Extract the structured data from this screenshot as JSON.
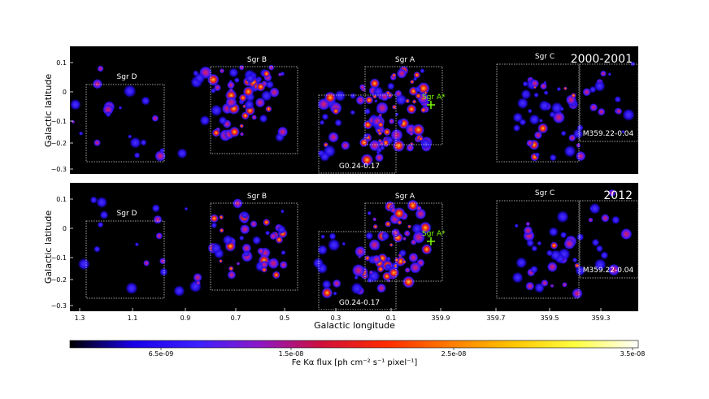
{
  "panels": [
    {
      "epoch": "2000-2001",
      "regions": [
        {
          "label": "Sgr D"
        },
        {
          "label": "Sgr B"
        },
        {
          "label": "Sgr A"
        },
        {
          "label": "G0.24-0.17"
        },
        {
          "label": "Sgr C"
        },
        {
          "label": "M359.22-0.04"
        }
      ],
      "source": "Sgr A*"
    },
    {
      "epoch": "2012",
      "regions": [
        {
          "label": "Sgr D"
        },
        {
          "label": "Sgr B"
        },
        {
          "label": "Sgr A"
        },
        {
          "label": "G0.24-0.17"
        },
        {
          "label": "Sgr C"
        },
        {
          "label": "M359.22-0.04"
        }
      ],
      "source": "Sgr A*"
    }
  ],
  "axes": {
    "ylabel": "Galactic latitude",
    "xlabel": "Galactic longitude",
    "yticks": [
      "0.1",
      "0",
      "−0.1",
      "−0.2",
      "−0.3"
    ],
    "xticks": [
      "1.3",
      "1.1",
      "0.9",
      "0.7",
      "0.5",
      "0.3",
      "0.1",
      "359.9",
      "359.7",
      "359.5",
      "359.3"
    ]
  },
  "colorbar": {
    "label": "Fe Kα flux [ph cm⁻² s⁻¹ pixel⁻¹]",
    "ticks": [
      "6.5e-09",
      "1.5e-08",
      "2.5e-08",
      "3.5e-08"
    ],
    "gradient": [
      "#000000",
      "#1a00e8",
      "#3a20ff",
      "#8c18c8",
      "#d0103a",
      "#ff2a00",
      "#ff7a00",
      "#ffc400",
      "#ffff40",
      "#ffffff"
    ],
    "marker_color": "#7cfc00",
    "box_color": "#d8d8d8"
  }
}
